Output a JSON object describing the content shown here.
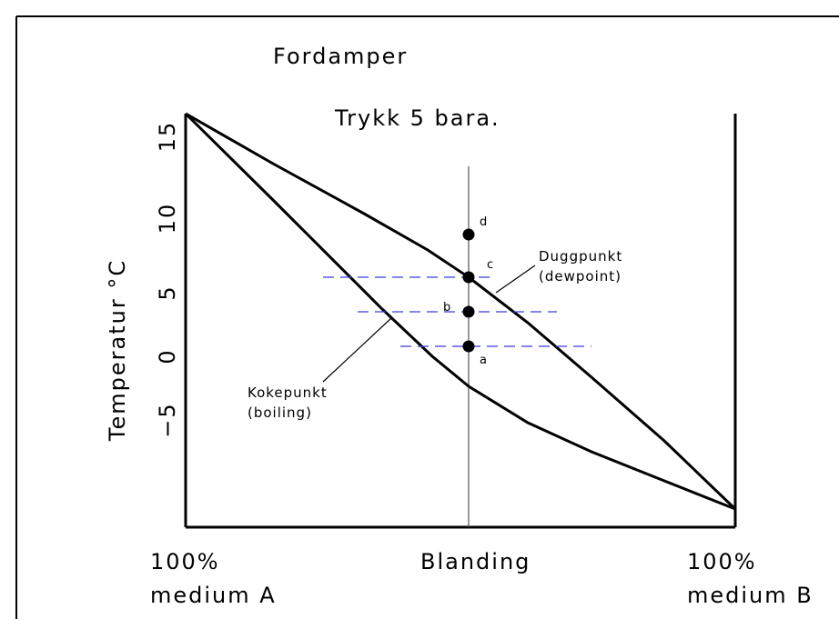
{
  "title": "Fordamper",
  "subtitle": "Trykk 5 bara.",
  "y_axis_label": "Temperatur °C",
  "y_ticks": [
    "15",
    "10",
    "5",
    "0",
    "−5"
  ],
  "x_labels": {
    "left": [
      "100%",
      "medium A"
    ],
    "center": "Blanding",
    "right": [
      "100%",
      "medium B"
    ]
  },
  "annotations": {
    "dewpoint": [
      "Duggpunkt",
      "(dewpoint)"
    ],
    "boiling": [
      "Kokepunkt",
      "(boiling)"
    ]
  },
  "points": [
    "d",
    "c",
    "b",
    "a"
  ]
}
